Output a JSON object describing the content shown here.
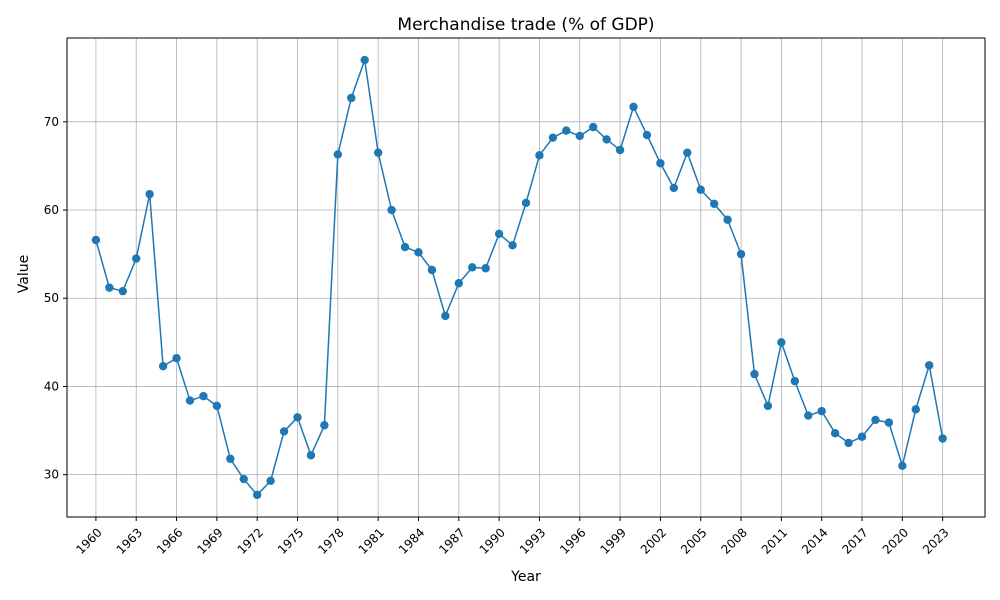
{
  "chart_data": {
    "type": "line",
    "title": "Merchandise trade (% of GDP)",
    "xlabel": "Year",
    "ylabel": "Value",
    "x": [
      1960,
      1961,
      1962,
      1963,
      1964,
      1965,
      1966,
      1967,
      1968,
      1969,
      1970,
      1971,
      1972,
      1973,
      1974,
      1975,
      1976,
      1977,
      1978,
      1979,
      1980,
      1981,
      1982,
      1983,
      1984,
      1985,
      1986,
      1987,
      1988,
      1989,
      1990,
      1991,
      1992,
      1993,
      1994,
      1995,
      1996,
      1997,
      1998,
      1999,
      2000,
      2001,
      2002,
      2003,
      2004,
      2005,
      2006,
      2007,
      2008,
      2009,
      2010,
      2011,
      2012,
      2013,
      2014,
      2015,
      2016,
      2017,
      2018,
      2019,
      2020,
      2021,
      2022,
      2023
    ],
    "series": [
      {
        "values": [
          56.6,
          51.2,
          50.8,
          54.5,
          61.8,
          42.3,
          43.2,
          38.4,
          38.9,
          37.8,
          31.8,
          29.5,
          27.7,
          29.3,
          34.9,
          36.5,
          32.2,
          35.6,
          66.3,
          72.7,
          77.0,
          66.5,
          60.0,
          55.8,
          55.2,
          53.2,
          48.0,
          51.7,
          53.5,
          53.4,
          57.3,
          56.0,
          60.8,
          66.2,
          68.2,
          69.0,
          68.4,
          69.4,
          68.0,
          66.8,
          71.7,
          68.5,
          65.3,
          62.5,
          66.5,
          62.3,
          60.7,
          58.9,
          55.0,
          41.4,
          37.8,
          45.0,
          40.6,
          36.7,
          37.2,
          34.7,
          33.6,
          34.3,
          36.2,
          35.9,
          31.0,
          37.4,
          42.4,
          34.1
        ]
      }
    ],
    "xticks": [
      1960,
      1963,
      1966,
      1969,
      1972,
      1975,
      1978,
      1981,
      1984,
      1987,
      1990,
      1993,
      1996,
      1999,
      2002,
      2005,
      2008,
      2011,
      2014,
      2017,
      2020,
      2023
    ],
    "yticks": [
      30,
      40,
      50,
      60,
      70
    ],
    "xlim": [
      1957.85,
      2026.15
    ],
    "ylim": [
      25.2,
      79.5
    ],
    "grid": true,
    "line_color": "#1f77b4"
  }
}
